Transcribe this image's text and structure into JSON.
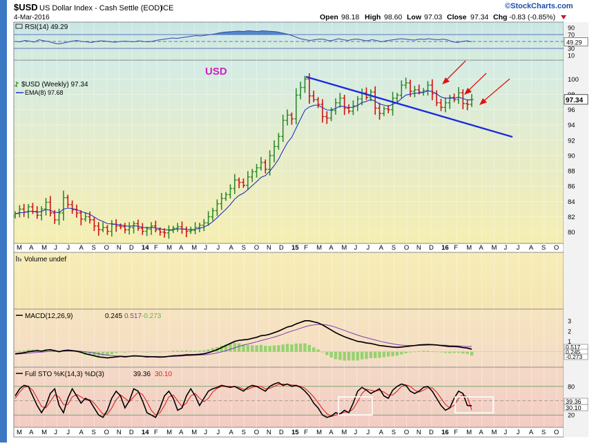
{
  "header": {
    "symbol": "$USD",
    "name": "US Dollar Index - Cash Settle (EOD)",
    "exchange": "ICE",
    "date": "4-Mar-2016",
    "open_label": "Open",
    "open": "98.18",
    "high_label": "High",
    "high": "98.60",
    "low_label": "Low",
    "low": "97.03",
    "close_label": "Close",
    "close": "97.34",
    "chg_label": "Chg",
    "chg": "-0.83 (-0.85%)",
    "brand": "©StockCharts.com"
  },
  "colors": {
    "up": "#2b8a2b",
    "down": "#d01010",
    "ema": "#2233bb",
    "trendline": "#1a2be0",
    "arrow": "#e01010",
    "annotation": "#d020c0",
    "macd": "#000000",
    "signal": "#7a3fb8",
    "histogram": "#77cc55",
    "stoch_k": "#000000",
    "stoch_d": "#e02020"
  },
  "x_axis": {
    "labels": [
      "M",
      "A",
      "M",
      "J",
      "J",
      "A",
      "S",
      "O",
      "N",
      "D",
      "14",
      "F",
      "M",
      "A",
      "M",
      "J",
      "J",
      "A",
      "S",
      "O",
      "N",
      "D",
      "15",
      "F",
      "M",
      "A",
      "M",
      "J",
      "J",
      "A",
      "S",
      "O",
      "N",
      "D",
      "16",
      "F",
      "M",
      "A",
      "M",
      "J",
      "J",
      "A",
      "S",
      "O"
    ]
  },
  "annotation_text": "USD",
  "chart_data": [
    {
      "panel": "rsi",
      "type": "line",
      "title": "RSI(14) 49.29",
      "yticks": [
        90,
        70,
        50,
        30,
        10
      ],
      "ylim": [
        0,
        100
      ],
      "overbought": 70,
      "oversold": 30,
      "last_label": "49.29",
      "values": [
        50,
        49,
        53,
        51,
        48,
        55,
        52,
        50,
        46,
        43,
        45,
        48,
        51,
        53,
        50,
        49,
        47,
        50,
        52,
        51,
        49,
        48,
        50,
        51,
        50,
        49,
        52,
        50,
        49,
        51,
        54,
        56,
        58,
        60,
        59,
        61,
        63,
        65,
        67,
        66,
        68,
        70,
        72,
        75,
        77,
        78,
        79,
        80,
        79,
        81,
        80,
        79,
        81,
        80,
        79,
        78,
        75,
        72,
        68,
        63,
        58,
        55,
        53,
        55,
        57,
        56,
        52,
        54,
        58,
        55,
        53,
        56,
        57,
        54,
        52,
        55,
        53,
        49,
        52,
        54,
        56,
        58,
        57,
        55,
        54,
        57,
        56,
        58,
        56,
        55,
        57,
        54,
        49,
        47,
        50,
        52,
        49.29
      ]
    },
    {
      "panel": "price",
      "type": "ohlc",
      "title": "$USD (Weekly) 97.34",
      "ema_label": "EMA(8) 97.68",
      "yticks": [
        100,
        98,
        96,
        94,
        92,
        90,
        88,
        86,
        84,
        82,
        80
      ],
      "ylim": [
        78.7,
        102.2
      ],
      "last_label": "97.34",
      "closes": [
        82.4,
        83.0,
        82.6,
        83.3,
        82.7,
        82.2,
        83.0,
        83.9,
        82.5,
        81.6,
        82.5,
        84.5,
        83.6,
        82.9,
        82.5,
        81.7,
        82.0,
        81.6,
        80.8,
        80.3,
        80.6,
        80.1,
        81.0,
        80.8,
        80.7,
        80.3,
        80.6,
        81.1,
        80.5,
        80.1,
        80.4,
        80.8,
        80.3,
        80.0,
        79.9,
        80.2,
        80.5,
        80.7,
        80.4,
        80.1,
        80.2,
        80.6,
        80.9,
        81.2,
        82.0,
        82.8,
        83.7,
        84.4,
        84.9,
        85.7,
        86.8,
        86.5,
        86.1,
        87.2,
        87.9,
        88.4,
        89.1,
        88.2,
        90.0,
        91.2,
        92.5,
        94.6,
        95.3,
        94.8,
        97.9,
        98.9,
        100.0,
        97.8,
        97.3,
        96.7,
        95.1,
        94.9,
        95.9,
        96.9,
        97.5,
        96.2,
        95.8,
        96.5,
        97.4,
        98.2,
        97.6,
        98.3,
        96.2,
        95.5,
        96.1,
        96.0,
        97.5,
        97.9,
        99.2,
        99.5,
        98.4,
        98.6,
        98.3,
        98.5,
        99.2,
        98.1,
        96.9,
        96.3,
        96.9,
        97.6,
        97.3,
        98.2,
        96.8,
        96.7,
        97.34
      ]
    },
    {
      "panel": "volume",
      "type": "bar",
      "title": "Volume undef",
      "values": []
    },
    {
      "panel": "macd",
      "type": "line",
      "title": "MACD(12,26,9)",
      "macd_value": "0.245",
      "signal_value": "0.517",
      "hist_value": "-0.273",
      "yticks": [
        3,
        2,
        1
      ],
      "ylim": [
        -1.3,
        3.6
      ],
      "last_labels": [
        "0.517",
        "0.245",
        "-0.273"
      ],
      "macd": [
        -0.2,
        -0.15,
        -0.1,
        0.0,
        0.05,
        0.1,
        0.05,
        0.15,
        0.2,
        0.1,
        0.0,
        0.1,
        0.15,
        0.1,
        0.05,
        -0.05,
        -0.2,
        -0.3,
        -0.4,
        -0.5,
        -0.55,
        -0.6,
        -0.55,
        -0.5,
        -0.45,
        -0.5,
        -0.45,
        -0.4,
        -0.42,
        -0.45,
        -0.5,
        -0.48,
        -0.5,
        -0.52,
        -0.5,
        -0.45,
        -0.4,
        -0.38,
        -0.35,
        -0.3,
        -0.3,
        -0.28,
        -0.25,
        -0.2,
        -0.1,
        0.05,
        0.2,
        0.4,
        0.6,
        0.8,
        1.0,
        1.1,
        1.15,
        1.2,
        1.3,
        1.4,
        1.55,
        1.6,
        1.7,
        1.85,
        2.0,
        2.2,
        2.4,
        2.5,
        2.7,
        2.85,
        3.0,
        3.0,
        2.9,
        2.8,
        2.6,
        2.35,
        2.1,
        1.85,
        1.65,
        1.45,
        1.3,
        1.15,
        1.0,
        0.95,
        0.85,
        0.8,
        0.7,
        0.6,
        0.55,
        0.5,
        0.45,
        0.42,
        0.45,
        0.5,
        0.55,
        0.6,
        0.65,
        0.68,
        0.7,
        0.68,
        0.65,
        0.6,
        0.55,
        0.5,
        0.5,
        0.48,
        0.4,
        0.35,
        0.245
      ],
      "signal": [
        -0.25,
        -0.22,
        -0.18,
        -0.14,
        -0.1,
        -0.06,
        -0.04,
        0.0,
        0.04,
        0.05,
        0.04,
        0.05,
        0.07,
        0.07,
        0.07,
        0.04,
        0.0,
        -0.06,
        -0.12,
        -0.2,
        -0.27,
        -0.33,
        -0.38,
        -0.41,
        -0.42,
        -0.44,
        -0.44,
        -0.43,
        -0.43,
        -0.44,
        -0.45,
        -0.46,
        -0.47,
        -0.48,
        -0.48,
        -0.47,
        -0.46,
        -0.44,
        -0.42,
        -0.39,
        -0.37,
        -0.35,
        -0.33,
        -0.3,
        -0.26,
        -0.2,
        -0.12,
        -0.02,
        0.1,
        0.24,
        0.38,
        0.52,
        0.64,
        0.74,
        0.85,
        0.96,
        1.08,
        1.19,
        1.3,
        1.42,
        1.55,
        1.7,
        1.86,
        2.0,
        2.14,
        2.28,
        2.42,
        2.53,
        2.6,
        2.64,
        2.64,
        2.59,
        2.5,
        2.37,
        2.22,
        2.07,
        1.91,
        1.76,
        1.61,
        1.48,
        1.36,
        1.25,
        1.14,
        1.03,
        0.93,
        0.84,
        0.76,
        0.69,
        0.64,
        0.61,
        0.6,
        0.6,
        0.61,
        0.62,
        0.64,
        0.65,
        0.65,
        0.64,
        0.63,
        0.6,
        0.58,
        0.56,
        0.53,
        0.5,
        0.517
      ]
    },
    {
      "panel": "stochastics",
      "type": "line",
      "title": "Full STO %K(14,3) %D(3)",
      "k_value": "39.36",
      "d_value": "30.10",
      "yticks": [
        80,
        50,
        20
      ],
      "ylim": [
        0,
        100
      ],
      "last_labels": [
        "39.36",
        "30.10"
      ],
      "k": [
        60,
        75,
        82,
        80,
        60,
        40,
        25,
        40,
        65,
        75,
        40,
        25,
        55,
        75,
        60,
        45,
        55,
        50,
        35,
        20,
        15,
        30,
        55,
        70,
        60,
        35,
        50,
        75,
        70,
        50,
        25,
        20,
        15,
        35,
        60,
        70,
        55,
        30,
        35,
        60,
        75,
        60,
        40,
        55,
        70,
        75,
        78,
        82,
        80,
        78,
        80,
        75,
        70,
        78,
        82,
        80,
        75,
        70,
        80,
        85,
        88,
        82,
        85,
        80,
        82,
        78,
        70,
        60,
        45,
        35,
        20,
        15,
        18,
        25,
        22,
        30,
        25,
        45,
        70,
        78,
        72,
        65,
        70,
        75,
        60,
        55,
        72,
        80,
        85,
        82,
        70,
        65,
        70,
        78,
        80,
        70,
        55,
        40,
        30,
        35,
        55,
        70,
        65,
        40,
        39.36
      ],
      "d": [
        55,
        68,
        78,
        80,
        72,
        55,
        38,
        35,
        48,
        62,
        58,
        42,
        42,
        58,
        63,
        58,
        52,
        52,
        45,
        33,
        22,
        22,
        35,
        52,
        62,
        55,
        48,
        58,
        68,
        63,
        48,
        30,
        20,
        25,
        40,
        58,
        62,
        50,
        38,
        45,
        60,
        65,
        55,
        48,
        55,
        68,
        76,
        80,
        80,
        80,
        79,
        78,
        74,
        74,
        78,
        80,
        80,
        75,
        76,
        80,
        84,
        85,
        84,
        83,
        82,
        80,
        76,
        68,
        58,
        46,
        33,
        23,
        17,
        20,
        22,
        26,
        26,
        33,
        48,
        65,
        74,
        72,
        70,
        72,
        68,
        62,
        62,
        70,
        80,
        83,
        80,
        72,
        68,
        72,
        77,
        77,
        68,
        55,
        42,
        35,
        40,
        55,
        63,
        58,
        30.1
      ]
    }
  ]
}
